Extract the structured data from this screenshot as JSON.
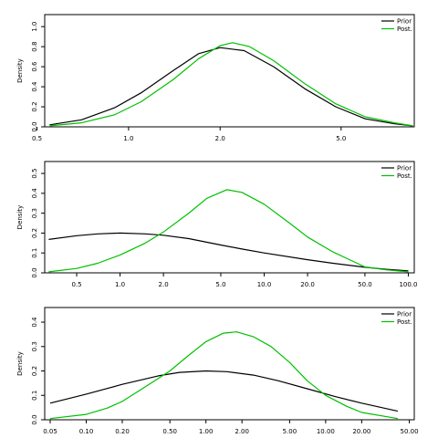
{
  "chart_data": [
    {
      "type": "line",
      "x_scale": "log",
      "xlim": [
        0.53,
        8.7
      ],
      "ylim": [
        0,
        1.12
      ],
      "x_ticks": [
        {
          "value": 0.5,
          "label": "0.5"
        },
        {
          "value": 1.0,
          "label": "1.0"
        },
        {
          "value": 2.0,
          "label": "2.0"
        },
        {
          "value": 5.0,
          "label": "5.0"
        }
      ],
      "y_ticks": [
        {
          "value": 0.0,
          "label": "0.0"
        },
        {
          "value": 0.2,
          "label": "0.2"
        },
        {
          "value": 0.4,
          "label": "0.4"
        },
        {
          "value": 0.6,
          "label": "0.6"
        },
        {
          "value": 0.8,
          "label": "0.8"
        },
        {
          "value": 1.0,
          "label": "1.0"
        }
      ],
      "ylabel": "Density",
      "legend": "top-right",
      "series": [
        {
          "name": "Prior",
          "color": "#000000",
          "x": [
            0.55,
            0.7,
            0.9,
            1.1,
            1.4,
            1.7,
            2.0,
            2.4,
            3.0,
            3.8,
            4.8,
            6.0,
            7.5,
            8.6
          ],
          "y": [
            0.02,
            0.07,
            0.19,
            0.34,
            0.56,
            0.73,
            0.79,
            0.76,
            0.6,
            0.38,
            0.2,
            0.08,
            0.03,
            0.01
          ]
        },
        {
          "name": "Post.",
          "color": "#00c000",
          "x": [
            0.55,
            0.7,
            0.9,
            1.1,
            1.4,
            1.7,
            2.0,
            2.2,
            2.5,
            3.0,
            3.8,
            4.8,
            6.0,
            7.5,
            8.6
          ],
          "y": [
            0.01,
            0.04,
            0.12,
            0.25,
            0.47,
            0.68,
            0.81,
            0.84,
            0.8,
            0.66,
            0.43,
            0.23,
            0.1,
            0.04,
            0.01
          ]
        }
      ]
    },
    {
      "type": "line",
      "x_scale": "log",
      "xlim": [
        0.3,
        110
      ],
      "ylim": [
        0,
        0.56
      ],
      "x_ticks": [
        {
          "value": 0.5,
          "label": "0.5"
        },
        {
          "value": 1.0,
          "label": "1.0"
        },
        {
          "value": 2.0,
          "label": "2.0"
        },
        {
          "value": 5.0,
          "label": "5.0"
        },
        {
          "value": 10.0,
          "label": "10.0"
        },
        {
          "value": 20.0,
          "label": "20.0"
        },
        {
          "value": 50.0,
          "label": "50.0"
        },
        {
          "value": 100.0,
          "label": "100.0"
        }
      ],
      "y_ticks": [
        {
          "value": 0.0,
          "label": "0.0"
        },
        {
          "value": 0.1,
          "label": "0.1"
        },
        {
          "value": 0.2,
          "label": "0.2"
        },
        {
          "value": 0.3,
          "label": "0.3"
        },
        {
          "value": 0.4,
          "label": "0.4"
        },
        {
          "value": 0.5,
          "label": "0.5"
        }
      ],
      "ylabel": "Density",
      "legend": "top-right",
      "series": [
        {
          "name": "Prior",
          "color": "#000000",
          "x": [
            0.32,
            0.5,
            0.7,
            1.0,
            1.5,
            2.0,
            3.0,
            5.0,
            7.0,
            10.0,
            20.0,
            30.0,
            50.0,
            70.0,
            100.0
          ],
          "y": [
            0.168,
            0.187,
            0.196,
            0.2,
            0.196,
            0.189,
            0.172,
            0.14,
            0.12,
            0.1,
            0.066,
            0.048,
            0.028,
            0.018,
            0.01
          ]
        },
        {
          "name": "Post.",
          "color": "#00c000",
          "x": [
            0.32,
            0.5,
            0.7,
            1.0,
            1.5,
            2.0,
            3.0,
            4.0,
            5.5,
            7.0,
            10.0,
            15.0,
            20.0,
            30.0,
            50.0,
            70.0,
            100.0
          ],
          "y": [
            0.005,
            0.022,
            0.048,
            0.09,
            0.15,
            0.205,
            0.3,
            0.375,
            0.418,
            0.405,
            0.345,
            0.25,
            0.18,
            0.105,
            0.03,
            0.015,
            0.005
          ]
        }
      ]
    },
    {
      "type": "line",
      "x_scale": "log",
      "xlim": [
        0.045,
        55
      ],
      "ylim": [
        0,
        0.46
      ],
      "x_ticks": [
        {
          "value": 0.05,
          "label": "0.05"
        },
        {
          "value": 0.1,
          "label": "0.10"
        },
        {
          "value": 0.2,
          "label": "0.20"
        },
        {
          "value": 0.5,
          "label": "0.50"
        },
        {
          "value": 1.0,
          "label": "1.00"
        },
        {
          "value": 2.0,
          "label": "2.00"
        },
        {
          "value": 5.0,
          "label": "5.00"
        },
        {
          "value": 10.0,
          "label": "10.00"
        },
        {
          "value": 20.0,
          "label": "20.00"
        },
        {
          "value": 50.0,
          "label": "50.00"
        }
      ],
      "y_ticks": [
        {
          "value": 0.0,
          "label": "0.0"
        },
        {
          "value": 0.1,
          "label": "0.1"
        },
        {
          "value": 0.2,
          "label": "0.2"
        },
        {
          "value": 0.3,
          "label": "0.3"
        },
        {
          "value": 0.4,
          "label": "0.4"
        }
      ],
      "ylabel": "Density",
      "legend": "top-right",
      "series": [
        {
          "name": "Prior",
          "color": "#000000",
          "x": [
            0.05,
            0.1,
            0.2,
            0.4,
            0.6,
            1.0,
            1.5,
            2.5,
            4.0,
            7.0,
            12.0,
            20.0,
            40.0
          ],
          "y": [
            0.068,
            0.105,
            0.145,
            0.18,
            0.194,
            0.2,
            0.197,
            0.183,
            0.16,
            0.127,
            0.095,
            0.068,
            0.035
          ]
        },
        {
          "name": "Post.",
          "color": "#00c000",
          "x": [
            0.05,
            0.1,
            0.15,
            0.2,
            0.3,
            0.5,
            0.7,
            1.0,
            1.4,
            1.8,
            2.5,
            3.5,
            5.0,
            7.0,
            10.0,
            15.0,
            20.0,
            40.0
          ],
          "y": [
            0.005,
            0.022,
            0.048,
            0.075,
            0.13,
            0.2,
            0.26,
            0.32,
            0.355,
            0.36,
            0.34,
            0.3,
            0.235,
            0.16,
            0.1,
            0.055,
            0.03,
            0.005
          ]
        }
      ]
    }
  ]
}
